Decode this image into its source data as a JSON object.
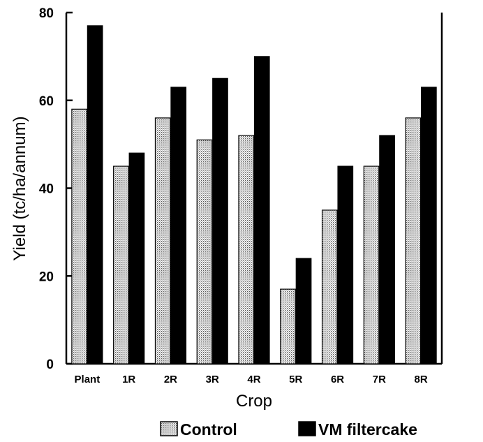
{
  "chart_data": {
    "type": "bar",
    "xlabel": "Crop",
    "ylabel": "Yield (tc/ha/annum)",
    "ylim": [
      0,
      80
    ],
    "yticks": [
      0,
      20,
      40,
      60,
      80
    ],
    "grid": false,
    "legend_position": "bottom",
    "categories": [
      "Plant",
      "1R",
      "2R",
      "3R",
      "4R",
      "5R",
      "6R",
      "7R",
      "8R"
    ],
    "series": [
      {
        "name": "Control",
        "pattern": "stippled",
        "color": "#b8b8b8",
        "values": [
          58,
          45,
          56,
          51,
          52,
          17,
          35,
          45,
          56
        ]
      },
      {
        "name": "VM filtercake",
        "pattern": "solid",
        "color": "#000000",
        "values": [
          77,
          48,
          63,
          65,
          70,
          24,
          45,
          52,
          63
        ]
      }
    ]
  }
}
